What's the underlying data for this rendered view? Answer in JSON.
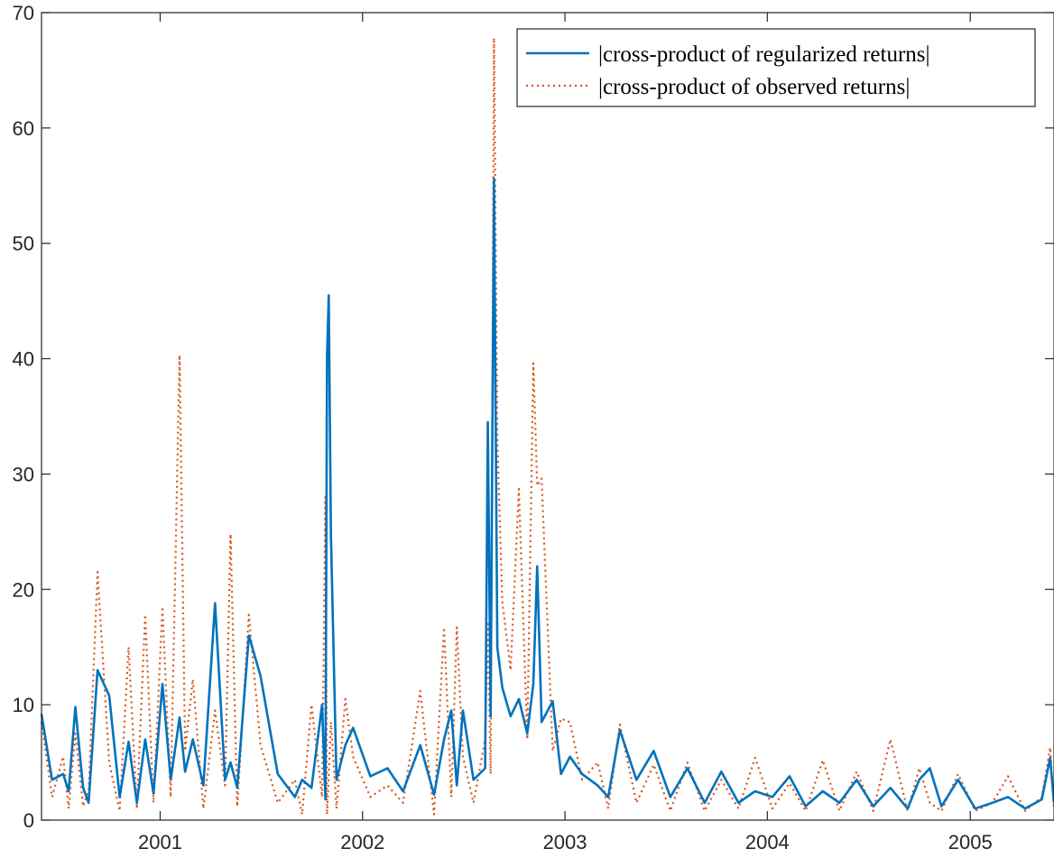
{
  "chart_data": {
    "type": "line",
    "title": "",
    "xlabel": "",
    "ylabel": "",
    "xlim": [
      "2000-06-01",
      "2005-06-01"
    ],
    "ylim": [
      0,
      70
    ],
    "x_ticks": [
      "2001",
      "2002",
      "2003",
      "2004",
      "2005"
    ],
    "y_ticks": [
      "0",
      "10",
      "20",
      "30",
      "40",
      "50",
      "60",
      "70"
    ],
    "grid": false,
    "legend_position": "top-right",
    "series": [
      {
        "name": "|cross-product of regularized returns|",
        "color": "#0072BD",
        "style": "solid",
        "x": [
          "2000-06-01",
          "2000-06-20",
          "2000-07-10",
          "2000-07-20",
          "2000-08-01",
          "2000-08-15",
          "2000-08-25",
          "2000-09-10",
          "2000-10-01",
          "2000-10-20",
          "2000-11-05",
          "2000-11-20",
          "2000-12-05",
          "2000-12-20",
          "2001-01-05",
          "2001-01-20",
          "2001-02-05",
          "2001-02-15",
          "2001-03-01",
          "2001-03-20",
          "2001-04-10",
          "2001-04-28",
          "2001-05-08",
          "2001-05-20",
          "2001-06-10",
          "2001-07-01",
          "2001-08-01",
          "2001-09-01",
          "2001-09-14",
          "2001-10-01",
          "2001-10-20",
          "2001-10-26",
          "2001-10-29",
          "2001-11-01",
          "2001-11-05",
          "2001-11-15",
          "2001-12-01",
          "2001-12-15",
          "2002-01-15",
          "2002-02-15",
          "2002-03-15",
          "2002-04-15",
          "2002-05-10",
          "2002-05-28",
          "2002-06-10",
          "2002-06-20",
          "2002-07-01",
          "2002-07-20",
          "2002-08-10",
          "2002-08-15",
          "2002-08-20",
          "2002-08-26",
          "2002-09-01",
          "2002-09-10",
          "2002-09-25",
          "2002-10-10",
          "2002-10-25",
          "2002-11-05",
          "2002-11-12",
          "2002-11-20",
          "2002-12-10",
          "2002-12-25",
          "2003-01-10",
          "2003-02-01",
          "2003-03-01",
          "2003-03-20",
          "2003-04-10",
          "2003-05-10",
          "2003-06-10",
          "2003-07-10",
          "2003-08-10",
          "2003-09-10",
          "2003-10-10",
          "2003-11-10",
          "2003-12-10",
          "2004-01-10",
          "2004-02-10",
          "2004-03-10",
          "2004-04-10",
          "2004-05-10",
          "2004-06-10",
          "2004-07-10",
          "2004-08-10",
          "2004-09-10",
          "2004-10-01",
          "2004-10-20",
          "2004-11-10",
          "2004-12-10",
          "2005-01-10",
          "2005-02-10",
          "2005-03-10",
          "2005-04-10",
          "2005-05-10",
          "2005-05-25",
          "2005-06-01"
        ],
        "y": [
          9.2,
          3.5,
          4.0,
          2.5,
          9.8,
          2.8,
          1.5,
          13.0,
          10.8,
          2.0,
          6.8,
          1.5,
          7.0,
          2.3,
          11.8,
          3.5,
          8.9,
          4.2,
          7.0,
          3.0,
          18.8,
          3.5,
          5.0,
          2.8,
          16.0,
          12.5,
          4.0,
          2.0,
          3.5,
          2.8,
          10.0,
          1.8,
          40.2,
          45.5,
          24.8,
          3.5,
          6.5,
          8.0,
          3.8,
          4.5,
          2.5,
          6.5,
          2.2,
          7.0,
          9.5,
          3.0,
          9.5,
          3.5,
          4.5,
          34.5,
          9.0,
          55.6,
          15.0,
          11.5,
          9.0,
          10.5,
          7.5,
          11.8,
          22.0,
          8.5,
          10.3,
          4.0,
          5.5,
          4.0,
          3.0,
          2.0,
          7.8,
          3.5,
          6.0,
          2.0,
          4.5,
          1.5,
          4.2,
          1.5,
          2.5,
          2.0,
          3.8,
          1.2,
          2.5,
          1.5,
          3.5,
          1.2,
          2.8,
          1.0,
          3.5,
          4.5,
          1.2,
          3.5,
          1.0,
          1.5,
          2.0,
          1.0,
          1.8,
          5.4,
          1.5
        ]
      },
      {
        "name": "|cross-product of observed returns|",
        "color": "#D95319",
        "style": "dotted",
        "x": [
          "2000-06-01",
          "2000-06-20",
          "2000-07-10",
          "2000-07-20",
          "2000-08-01",
          "2000-08-15",
          "2000-08-25",
          "2000-09-10",
          "2000-10-01",
          "2000-10-20",
          "2000-11-05",
          "2000-11-20",
          "2000-12-05",
          "2000-12-20",
          "2001-01-05",
          "2001-01-20",
          "2001-02-05",
          "2001-02-15",
          "2001-03-01",
          "2001-03-20",
          "2001-04-10",
          "2001-04-28",
          "2001-05-08",
          "2001-05-20",
          "2001-06-10",
          "2001-07-01",
          "2001-08-01",
          "2001-09-01",
          "2001-09-14",
          "2001-10-01",
          "2001-10-20",
          "2001-10-26",
          "2001-10-29",
          "2001-11-01",
          "2001-11-05",
          "2001-11-15",
          "2001-12-01",
          "2001-12-15",
          "2002-01-15",
          "2002-02-15",
          "2002-03-15",
          "2002-04-15",
          "2002-05-10",
          "2002-05-28",
          "2002-06-10",
          "2002-06-20",
          "2002-07-01",
          "2002-07-20",
          "2002-08-10",
          "2002-08-15",
          "2002-08-20",
          "2002-08-26",
          "2002-09-01",
          "2002-09-10",
          "2002-09-25",
          "2002-10-10",
          "2002-10-25",
          "2002-11-05",
          "2002-11-12",
          "2002-11-20",
          "2002-12-10",
          "2002-12-25",
          "2003-01-10",
          "2003-02-01",
          "2003-03-01",
          "2003-03-20",
          "2003-04-10",
          "2003-05-10",
          "2003-06-10",
          "2003-07-10",
          "2003-08-10",
          "2003-09-10",
          "2003-10-10",
          "2003-11-10",
          "2003-12-10",
          "2004-01-10",
          "2004-02-10",
          "2004-03-10",
          "2004-04-10",
          "2004-05-10",
          "2004-06-10",
          "2004-07-10",
          "2004-08-10",
          "2004-09-10",
          "2004-10-01",
          "2004-10-20",
          "2004-11-10",
          "2004-12-10",
          "2005-01-10",
          "2005-02-10",
          "2005-03-10",
          "2005-04-10",
          "2005-05-10",
          "2005-05-25",
          "2005-06-01"
        ],
        "y": [
          8.5,
          2.0,
          5.5,
          1.0,
          7.5,
          1.2,
          2.5,
          21.5,
          5.0,
          0.8,
          15.0,
          1.0,
          17.8,
          1.5,
          18.5,
          2.0,
          40.3,
          6.0,
          12.2,
          1.0,
          9.5,
          3.0,
          24.8,
          1.2,
          17.8,
          6.5,
          1.5,
          3.5,
          0.5,
          10.0,
          2.0,
          28.0,
          0.5,
          4.0,
          8.5,
          1.0,
          10.5,
          5.5,
          2.0,
          3.0,
          1.5,
          11.2,
          0.5,
          16.7,
          2.0,
          16.7,
          5.5,
          1.5,
          7.0,
          17.0,
          4.0,
          67.8,
          33.0,
          19.0,
          13.0,
          28.7,
          7.0,
          39.6,
          29.0,
          29.6,
          6.0,
          8.8,
          8.5,
          3.5,
          5.0,
          1.0,
          8.3,
          1.5,
          4.8,
          0.8,
          5.0,
          0.8,
          3.5,
          1.0,
          5.4,
          1.0,
          3.2,
          0.8,
          5.2,
          0.8,
          4.2,
          0.8,
          7.0,
          0.8,
          4.5,
          1.5,
          0.8,
          4.0,
          0.8,
          1.5,
          3.8,
          0.8,
          2.0,
          6.3,
          1.0
        ]
      }
    ]
  }
}
